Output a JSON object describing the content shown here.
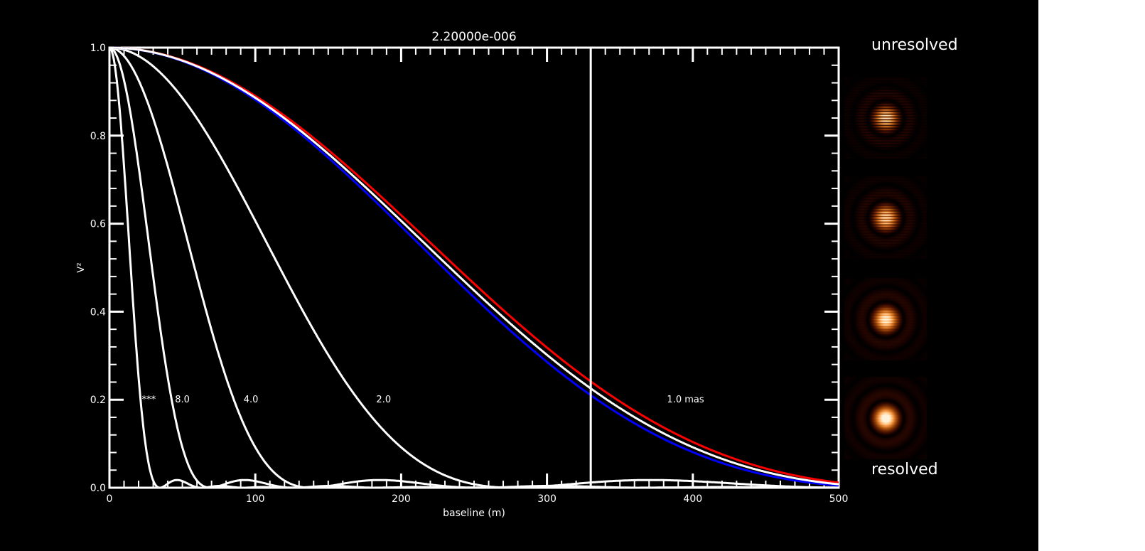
{
  "chart_data": {
    "type": "line",
    "title": "2.20000e-006",
    "xlabel": "baseline (m)",
    "ylabel": "V²",
    "xlim": [
      0,
      500
    ],
    "ylim": [
      0,
      1
    ],
    "xticks": [
      "0",
      "100",
      "200",
      "300",
      "400",
      "500"
    ],
    "yticks": [
      "0.0",
      "0.2",
      "0.4",
      "0.6",
      "0.8",
      "1.0"
    ],
    "grid": false,
    "wavelength_m": 2.2e-06,
    "vertical_line_x": 330,
    "series": [
      {
        "diameter_mas": 16.0,
        "color": "#ffffff"
      },
      {
        "diameter_mas": 8.0,
        "color": "#ffffff"
      },
      {
        "diameter_mas": 4.0,
        "color": "#ffffff"
      },
      {
        "diameter_mas": 2.0,
        "color": "#ffffff"
      },
      {
        "diameter_mas": 0.98,
        "color": "#ff0000"
      },
      {
        "diameter_mas": 1.02,
        "color": "#0000ff"
      },
      {
        "diameter_mas": 1.0,
        "color": "#ffffff"
      }
    ],
    "annotations": [
      {
        "text": "***",
        "x": 27,
        "y": 0.2
      },
      {
        "text": "8.0",
        "x": 50,
        "y": 0.2
      },
      {
        "text": "4.0",
        "x": 97,
        "y": 0.2
      },
      {
        "text": "2.0",
        "x": 188,
        "y": 0.2
      },
      {
        "text": "1.0 mas",
        "x": 395,
        "y": 0.2
      }
    ]
  },
  "side_labels": {
    "top": "unresolved",
    "bottom": "resolved"
  },
  "fringe_images": [
    {
      "name": "fringe-unresolved",
      "fringe_contrast": 1.0
    },
    {
      "name": "fringe-partial",
      "fringe_contrast": 0.7
    },
    {
      "name": "fringe-mostly-resolved",
      "fringe_contrast": 0.25
    },
    {
      "name": "fringe-resolved",
      "fringe_contrast": 0.05
    }
  ]
}
